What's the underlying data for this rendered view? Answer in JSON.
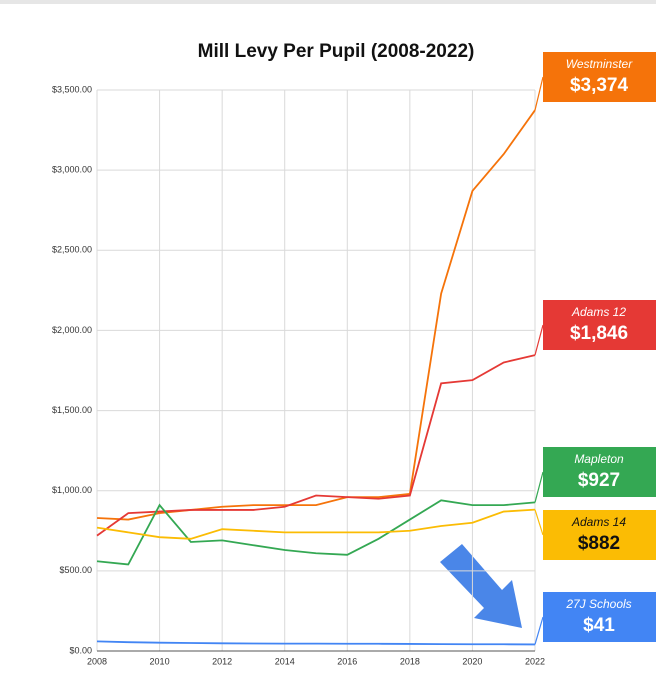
{
  "chart_data": {
    "type": "line",
    "title": "Mill Levy Per Pupil (2008-2022)",
    "x": [
      2008,
      2009,
      2010,
      2011,
      2012,
      2013,
      2014,
      2015,
      2016,
      2017,
      2018,
      2019,
      2020,
      2021,
      2022
    ],
    "xlim": [
      2008,
      2022
    ],
    "xticks": [
      2008,
      2010,
      2012,
      2014,
      2016,
      2018,
      2020,
      2022
    ],
    "ylim": [
      0,
      3500
    ],
    "yticks": [
      {
        "value": 0,
        "label": "$0.00"
      },
      {
        "value": 500,
        "label": "$500.00"
      },
      {
        "value": 1000,
        "label": "$1,000.00"
      },
      {
        "value": 1500,
        "label": "$1,500.00"
      },
      {
        "value": 2000,
        "label": "$2,000.00"
      },
      {
        "value": 2500,
        "label": "$2,500.00"
      },
      {
        "value": 3000,
        "label": "$3,000.00"
      },
      {
        "value": 3500,
        "label": "$3,500.00"
      }
    ],
    "grid": true,
    "series": [
      {
        "name": "Westminster",
        "color": "#f5730a",
        "values": [
          830,
          820,
          860,
          880,
          900,
          910,
          910,
          910,
          960,
          960,
          980,
          2230,
          2870,
          3100,
          3374
        ],
        "value_labels": [
          null,
          null,
          null,
          null,
          null,
          null,
          null,
          null,
          null,
          null,
          null,
          null,
          null,
          null,
          "$3,374"
        ]
      },
      {
        "name": "Adams 12",
        "color": "#e53935",
        "values": [
          720,
          860,
          870,
          880,
          880,
          880,
          900,
          970,
          960,
          950,
          970,
          1670,
          1690,
          1800,
          1846
        ],
        "value_labels": [
          null,
          null,
          null,
          null,
          null,
          null,
          null,
          null,
          null,
          null,
          null,
          null,
          null,
          null,
          "$1,846"
        ]
      },
      {
        "name": "Mapleton",
        "color": "#34a853",
        "values": [
          560,
          540,
          910,
          680,
          690,
          660,
          630,
          610,
          600,
          700,
          820,
          940,
          910,
          910,
          927
        ],
        "value_labels": [
          null,
          null,
          null,
          null,
          null,
          null,
          null,
          null,
          null,
          null,
          null,
          null,
          null,
          null,
          "$927"
        ]
      },
      {
        "name": "Adams 14",
        "color": "#fbbc04",
        "values": [
          770,
          740,
          710,
          700,
          760,
          750,
          740,
          740,
          740,
          740,
          750,
          780,
          800,
          870,
          882
        ],
        "value_labels": [
          null,
          null,
          null,
          null,
          null,
          null,
          null,
          null,
          null,
          null,
          null,
          null,
          null,
          null,
          "$882"
        ]
      },
      {
        "name": "27J Schools",
        "color": "#4285f4",
        "values": [
          60,
          55,
          52,
          50,
          48,
          47,
          46,
          46,
          45,
          45,
          44,
          43,
          42,
          42,
          41
        ],
        "value_labels": [
          null,
          null,
          null,
          null,
          null,
          null,
          null,
          null,
          null,
          null,
          null,
          null,
          null,
          null,
          "$41"
        ]
      }
    ]
  }
}
